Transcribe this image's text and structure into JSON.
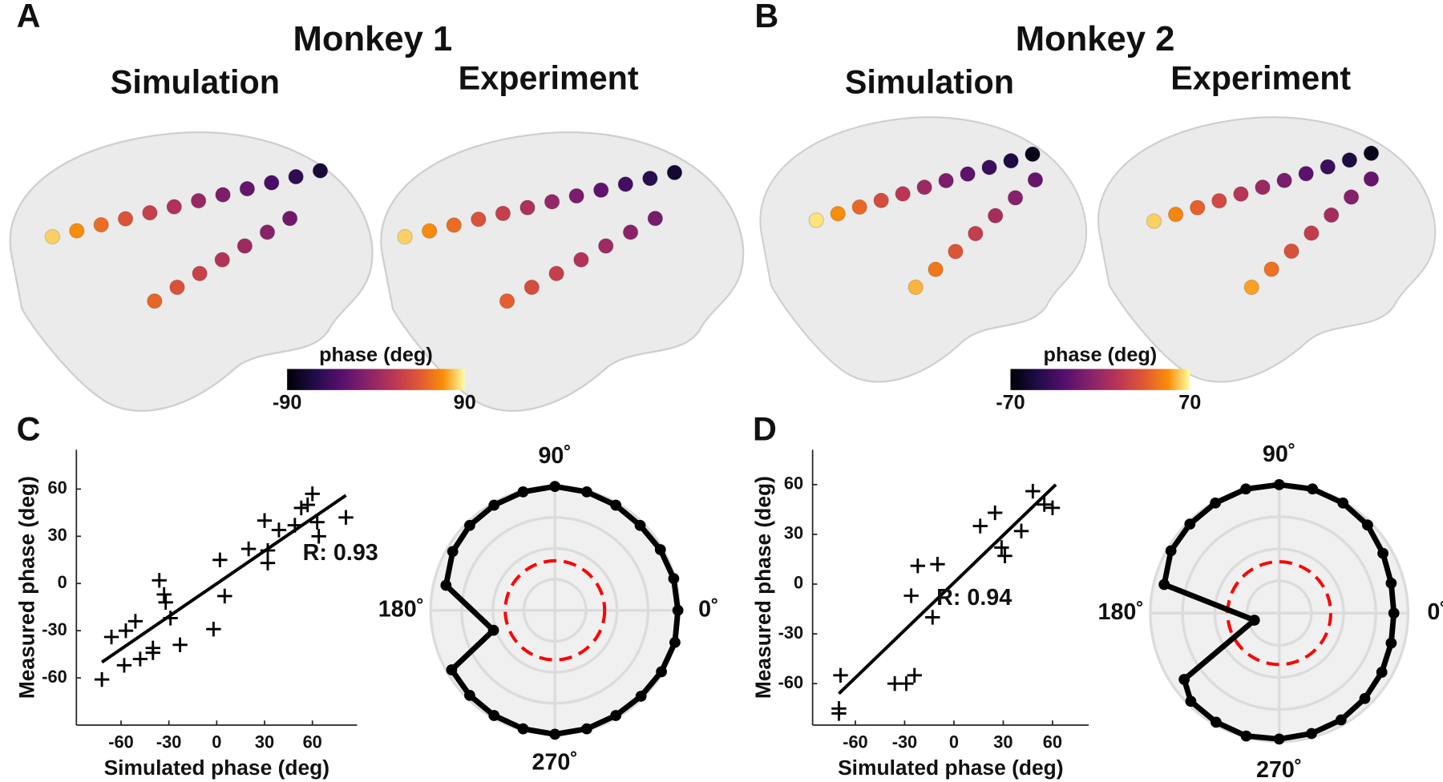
{
  "panel_labels": [
    "A",
    "B",
    "C",
    "D"
  ],
  "panels": [
    {
      "title": "Monkey 1",
      "subtitles": [
        "Simulation",
        "Experiment"
      ],
      "colorbar": {
        "label": "phase (deg)",
        "lim": [
          -90,
          90
        ],
        "ticks": [
          -90,
          90
        ]
      }
    },
    {
      "title": "Monkey 2",
      "subtitles": [
        "Simulation",
        "Experiment"
      ],
      "colorbar": {
        "label": "phase (deg)",
        "lim": [
          -70,
          70
        ],
        "ticks": [
          -70,
          70
        ]
      }
    }
  ],
  "chart_data": [
    {
      "type": "scatter",
      "xlabel": "Simulated phase (deg)",
      "ylabel": "Measured phase (deg)",
      "xlim": [
        -88,
        88
      ],
      "ylim": [
        -90,
        85
      ],
      "xticks": [
        -60,
        -30,
        0,
        30,
        60
      ],
      "yticks": [
        -60,
        -30,
        0,
        30,
        60
      ],
      "x": [
        -72,
        -66,
        -57,
        -58,
        -51,
        -48,
        -40,
        -40,
        -36,
        -33,
        -32,
        -29,
        -23,
        -2,
        2,
        5,
        20,
        30,
        32,
        32,
        39,
        49,
        53,
        57,
        60,
        63,
        64,
        81
      ],
      "y": [
        -61,
        -34,
        -30,
        -52,
        -24,
        -48,
        -41,
        -44,
        2,
        -7,
        -12,
        -22,
        -39,
        -29,
        15,
        -8,
        22,
        40,
        21,
        13,
        34,
        37,
        48,
        50,
        57,
        39,
        30,
        42
      ],
      "color": "#000000",
      "fit_line": {
        "x": [
          -72,
          81
        ],
        "y": [
          -50,
          56
        ]
      },
      "annotation": "R: 0.93"
    },
    {
      "type": "polar",
      "rlim": [
        0,
        1
      ],
      "rticks": [
        0.25,
        0.5,
        0.75,
        1
      ],
      "threshold": 0.4,
      "thetaticks": [
        {
          "value": 0,
          "label": "0˚"
        },
        {
          "value": 90,
          "label": "90˚"
        },
        {
          "value": 180,
          "label": "180˚"
        },
        {
          "value": 270,
          "label": "270˚"
        }
      ],
      "theta": [
        0,
        15,
        30,
        45,
        60,
        75,
        90,
        105,
        120,
        135,
        150,
        167,
        198,
        210,
        225,
        240,
        255,
        270,
        285,
        300,
        315,
        330,
        345
      ],
      "r": [
        0.99,
        0.99,
        0.98,
        0.97,
        0.98,
        0.99,
        1.0,
        0.99,
        0.98,
        0.97,
        0.95,
        0.9,
        0.52,
        0.96,
        0.97,
        0.98,
        0.99,
        1.0,
        0.99,
        0.98,
        0.98,
        0.99,
        1.0
      ],
      "color": "#000000",
      "threshold_color": "#ff0000"
    },
    {
      "type": "scatter",
      "xlabel": "Simulated phase (deg)",
      "ylabel": "Measured phase (deg)",
      "xlim": [
        -86,
        82
      ],
      "ylim": [
        -85,
        81
      ],
      "xticks": [
        -60,
        -30,
        0,
        30,
        60
      ],
      "yticks": [
        -60,
        -30,
        0,
        30,
        60
      ],
      "x": [
        -69,
        -70,
        -70,
        -36,
        -29,
        -24,
        -26,
        -22,
        -10,
        -13,
        16,
        25,
        41,
        29,
        31,
        48,
        55,
        60
      ],
      "y": [
        -55,
        -75,
        -78,
        -60,
        -60,
        -55,
        -7,
        11,
        12,
        -20,
        35,
        43,
        32,
        22,
        17,
        56,
        48,
        46
      ],
      "color": "#000000",
      "fit_line": {
        "x": [
          -70,
          62
        ],
        "y": [
          -66,
          60
        ]
      },
      "annotation": "R: 0.94"
    },
    {
      "type": "polar",
      "rlim": [
        0,
        1
      ],
      "rticks": [
        0.25,
        0.5,
        0.75,
        1
      ],
      "threshold": 0.4,
      "thetaticks": [
        {
          "value": 0,
          "label": "0˚"
        },
        {
          "value": 90,
          "label": "90˚"
        },
        {
          "value": 180,
          "label": "180˚"
        },
        {
          "value": 270,
          "label": "270˚"
        }
      ],
      "theta": [
        0,
        15,
        30,
        45,
        60,
        75,
        90,
        105,
        120,
        135,
        150,
        166,
        196,
        215,
        225,
        240,
        255,
        270,
        285,
        300,
        315,
        330,
        345
      ],
      "r": [
        0.89,
        0.9,
        0.93,
        0.97,
        0.99,
        1.0,
        1.0,
        1.0,
        0.99,
        0.98,
        0.97,
        0.92,
        0.2,
        0.9,
        0.97,
        0.98,
        0.99,
        0.98,
        0.97,
        0.96,
        0.94,
        0.92,
        0.9
      ],
      "color": "#000000",
      "threshold_color": "#ff0000"
    }
  ]
}
